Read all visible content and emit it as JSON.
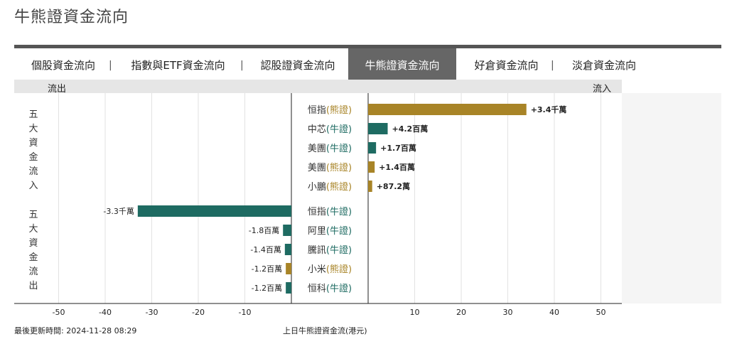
{
  "page_title": "牛熊證資金流向",
  "tabs": [
    {
      "label": "個股資金流向",
      "active": false
    },
    {
      "label": "指數與ETF資金流向",
      "active": false
    },
    {
      "label": "認股證資金流向",
      "active": false
    },
    {
      "label": "牛熊證資金流向",
      "active": true
    },
    {
      "label": "好倉資金流向",
      "active": false
    },
    {
      "label": "淡倉資金流向",
      "active": false
    }
  ],
  "tab_separator": "|",
  "header": {
    "outflow_label": "流出",
    "inflow_label": "流入"
  },
  "groups": {
    "inflow_label": [
      "五",
      "大",
      "資",
      "金",
      "流",
      "入"
    ],
    "outflow_label": [
      "五",
      "大",
      "資",
      "金",
      "流",
      "出"
    ]
  },
  "colors": {
    "bear": "#a88427",
    "bull": "#1e6b62",
    "accent_tab": "#666666"
  },
  "chart_data": {
    "type": "bar",
    "orientation": "horizontal-diverging",
    "xlim": [
      -55,
      55
    ],
    "xticks": [
      -50,
      -40,
      -30,
      -20,
      -10,
      10,
      20,
      30,
      40,
      50
    ],
    "xlabel": "上日牛熊證資金流(港元)",
    "inflow": [
      {
        "name": "恒指",
        "kind": "熊證",
        "value": 34,
        "label": "+3.4千萬"
      },
      {
        "name": "中芯",
        "kind": "牛證",
        "value": 4.2,
        "label": "+4.2百萬"
      },
      {
        "name": "美團",
        "kind": "牛證",
        "value": 1.7,
        "label": "+1.7百萬"
      },
      {
        "name": "美團",
        "kind": "熊證",
        "value": 1.4,
        "label": "+1.4百萬"
      },
      {
        "name": "小鵬",
        "kind": "熊證",
        "value": 0.872,
        "label": "+87.2萬"
      }
    ],
    "outflow": [
      {
        "name": "恒指",
        "kind": "牛證",
        "value": -33,
        "label": "-3.3千萬"
      },
      {
        "name": "阿里",
        "kind": "牛證",
        "value": -1.8,
        "label": "-1.8百萬"
      },
      {
        "name": "騰訊",
        "kind": "牛證",
        "value": -1.4,
        "label": "-1.4百萬"
      },
      {
        "name": "小米",
        "kind": "熊證",
        "value": -1.2,
        "label": "-1.2百萬"
      },
      {
        "name": "恒科",
        "kind": "牛證",
        "value": -1.2,
        "label": "-1.2百萬"
      }
    ]
  },
  "footer": {
    "updated_label": "最後更新時間:",
    "updated_time": "2024-11-28 08:29"
  }
}
